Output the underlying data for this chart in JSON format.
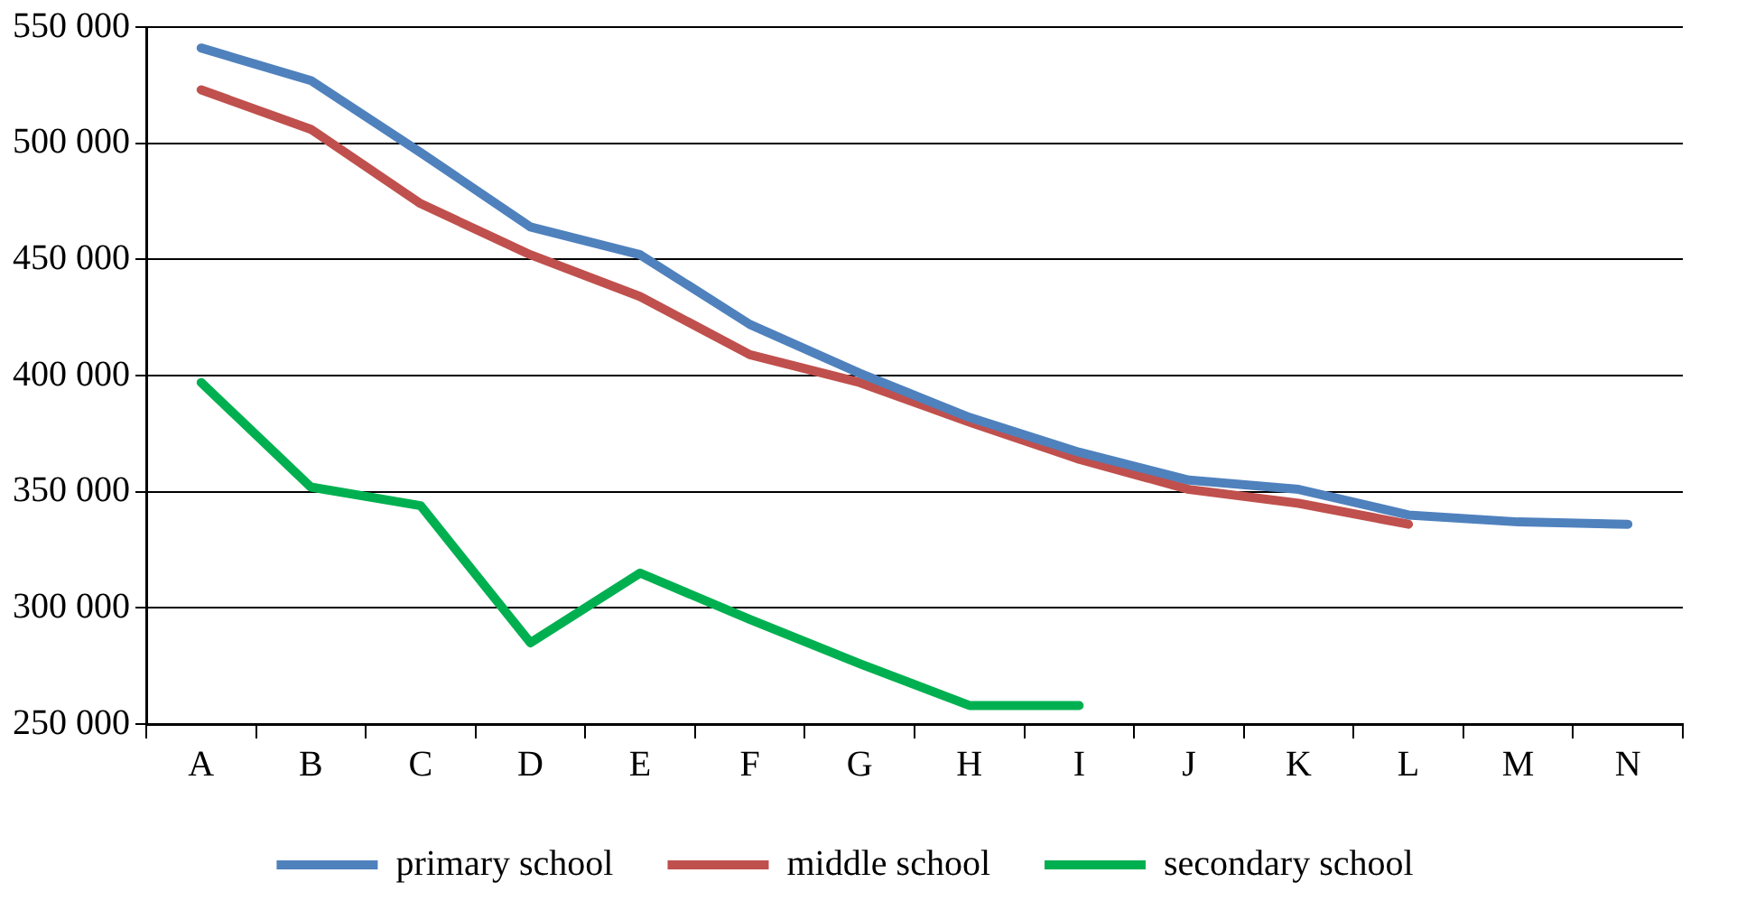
{
  "chart_data": {
    "type": "line",
    "categories": [
      "A",
      "B",
      "C",
      "D",
      "E",
      "F",
      "G",
      "H",
      "I",
      "J",
      "K",
      "L",
      "M",
      "N"
    ],
    "series": [
      {
        "name": "primary school",
        "color": "#4f81bd",
        "values": [
          541000,
          527000,
          496000,
          464000,
          452000,
          422000,
          401000,
          382000,
          367000,
          355000,
          351000,
          340000,
          337000,
          336000
        ]
      },
      {
        "name": "middle school",
        "color": "#c0504d",
        "values": [
          523000,
          506000,
          474000,
          452000,
          434000,
          409000,
          397000,
          380000,
          364000,
          351000,
          345000,
          336000,
          null,
          null
        ]
      },
      {
        "name": "secondary school",
        "color": "#00b050",
        "values": [
          397000,
          352000,
          344000,
          285000,
          315000,
          295000,
          276000,
          258000,
          258000,
          null,
          null,
          null,
          null,
          null
        ]
      }
    ],
    "ylim": [
      250000,
      550000
    ],
    "yticks": [
      {
        "value": 250000,
        "label": "250 000"
      },
      {
        "value": 300000,
        "label": "300 000"
      },
      {
        "value": 350000,
        "label": "350 000"
      },
      {
        "value": 400000,
        "label": "400 000"
      },
      {
        "value": 450000,
        "label": "450 000"
      },
      {
        "value": 500000,
        "label": "500 000"
      },
      {
        "value": 550000,
        "label": "550 000"
      }
    ],
    "grid": "y",
    "legend": "bottom",
    "marker": "none",
    "line_style": "solid"
  }
}
